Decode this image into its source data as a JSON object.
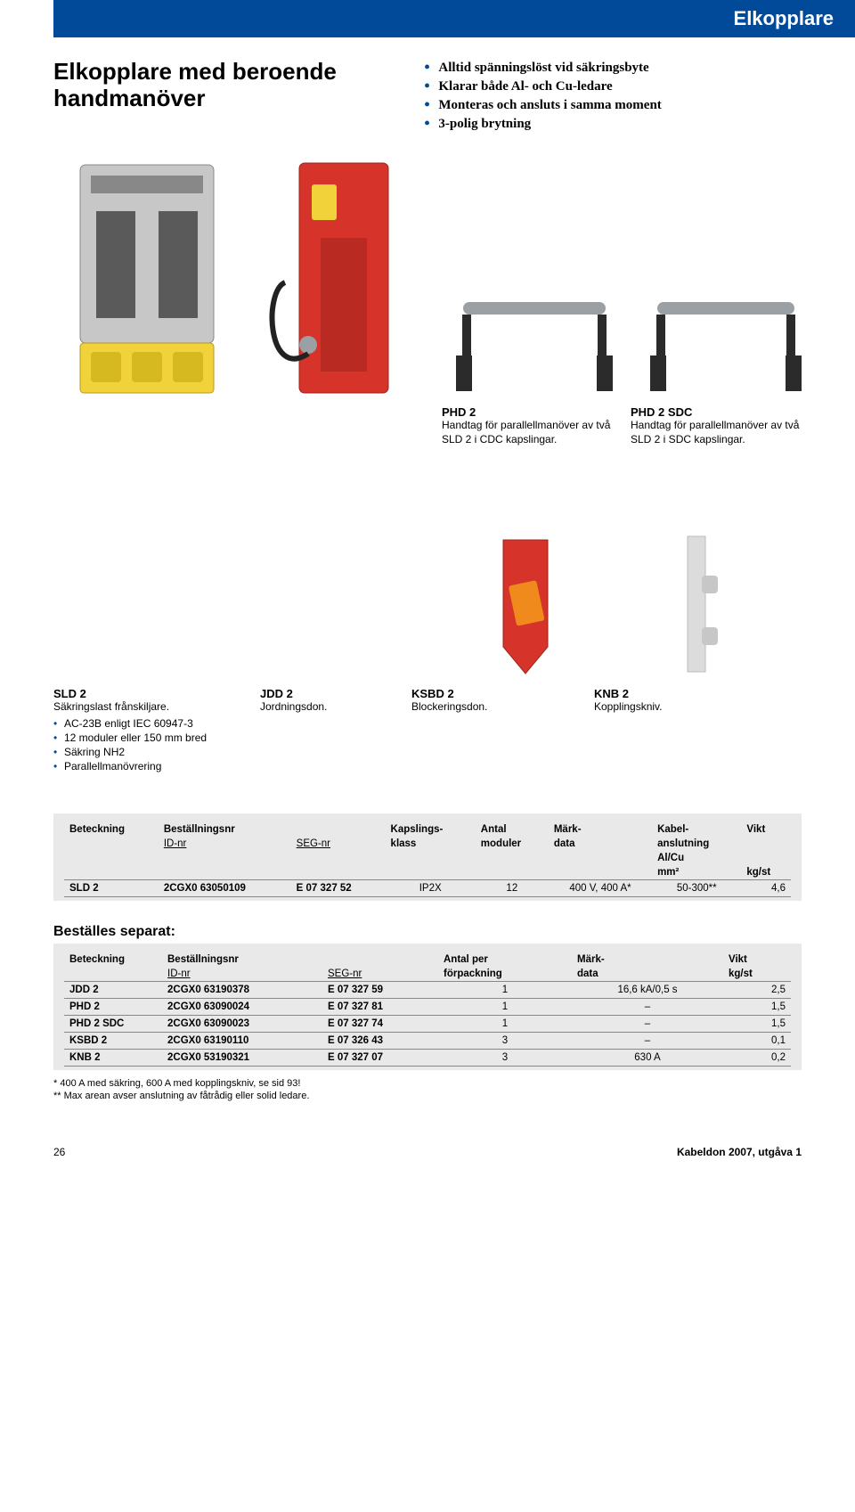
{
  "colors": {
    "brand_blue": "#004a99",
    "table_bg": "#e9e9e9",
    "rule": "#888888",
    "text": "#000000",
    "white": "#ffffff",
    "red_device": "#d6342a",
    "yellow_device": "#f2d23a",
    "grey_device": "#c7c7c7",
    "dark_grey": "#5a5a5a",
    "orange_tag": "#f08a1d"
  },
  "header": {
    "title": "Elkopplare"
  },
  "intro": {
    "heading_line1": "Elkopplare med beroende",
    "heading_line2": "handmanöver",
    "bullets": [
      "Alltid spänningslöst vid säkringsbyte",
      "Klarar både Al- och Cu-ledare",
      "Monteras och ansluts i samma moment",
      "3-polig brytning"
    ]
  },
  "captions_top": {
    "phd2": {
      "title": "PHD 2",
      "text": "Handtag för parallell­manöver av två SLD 2 i CDC kapslingar."
    },
    "phd2sdc": {
      "title": "PHD 2 SDC",
      "text": "Handtag för parallell­manöver av två SLD 2 i SDC kapslingar."
    }
  },
  "captions_bottom": {
    "sld2": {
      "title": "SLD 2",
      "sub": "Säkringslast frånskiljare.",
      "bullets": [
        "AC-23B enligt IEC 60947-3",
        "12 moduler eller 150 mm bred",
        "Säkring NH2",
        "Parallellmanövrering"
      ]
    },
    "jdd2": {
      "title": "JDD 2",
      "sub": "Jordningsdon."
    },
    "ksbd2": {
      "title": "KSBD 2",
      "sub": "Blockeringsdon."
    },
    "knb2": {
      "title": "KNB 2",
      "sub": "Kopplingskniv."
    }
  },
  "table1": {
    "headers": {
      "beteckning": "Beteckning",
      "bestallningsnr": "Beställningsnr",
      "idnr": "ID-nr",
      "segnr": "SEG-nr",
      "kapslings": "Kapslings-",
      "klass": "klass",
      "antal": "Antal",
      "moduler": "moduler",
      "mark": "Märk-",
      "data": "data",
      "kabel": "Kabel-",
      "anslutning": "anslutning",
      "alcu": "Al/Cu",
      "mm2": "mm²",
      "vikt": "Vikt",
      "kgst": "kg/st"
    },
    "row": {
      "beteckning": "SLD 2",
      "idnr": "2CGX0 63050109",
      "segnr": "E 07 327 52",
      "kapsling": "IP2X",
      "moduler": "12",
      "markdata": "400 V, 400 A*",
      "kabel": "50-300**",
      "vikt": "4,6"
    }
  },
  "table2": {
    "title": "Beställes separat:",
    "headers": {
      "beteckning": "Beteckning",
      "bestallningsnr": "Beställningsnr",
      "idnr": "ID-nr",
      "segnr": "SEG-nr",
      "antalper": "Antal per",
      "forpackning": "förpackning",
      "mark": "Märk-",
      "data": "data",
      "vikt": "Vikt",
      "kgst": "kg/st"
    },
    "rows": [
      {
        "b": "JDD 2",
        "id": "2CGX0 63190378",
        "seg": "E 07 327 59",
        "antal": "1",
        "mark": "16,6 kA/0,5 s",
        "vikt": "2,5"
      },
      {
        "b": "PHD 2",
        "id": "2CGX0 63090024",
        "seg": "E 07 327 81",
        "antal": "1",
        "mark": "–",
        "vikt": "1,5"
      },
      {
        "b": "PHD 2 SDC",
        "id": "2CGX0 63090023",
        "seg": "E 07 327 74",
        "antal": "1",
        "mark": "–",
        "vikt": "1,5"
      },
      {
        "b": "KSBD 2",
        "id": "2CGX0 63190110",
        "seg": "E 07 326 43",
        "antal": "3",
        "mark": "–",
        "vikt": "0,1"
      },
      {
        "b": "KNB 2",
        "id": "2CGX0 53190321",
        "seg": "E 07 327 07",
        "antal": "3",
        "mark": "630 A",
        "vikt": "0,2"
      }
    ]
  },
  "footnotes": {
    "l1": "*   400 A med säkring, 600 A med kopplingskniv, se sid 93!",
    "l2": "** Max arean avser anslutning av fåtrådig eller solid ledare."
  },
  "footer": {
    "page": "26",
    "doc": "Kabeldon 2007, utgåva 1"
  }
}
